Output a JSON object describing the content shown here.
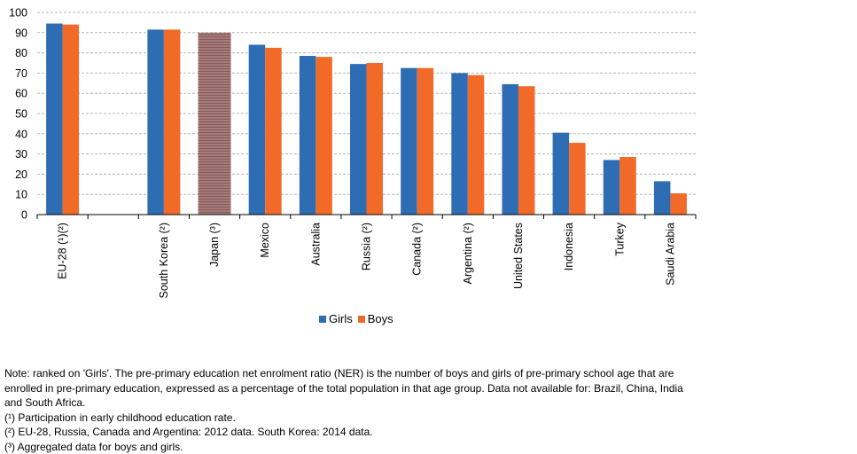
{
  "chart_data": {
    "type": "bar",
    "categories": [
      "EU-28 (¹)(²)",
      "",
      "South Korea (²)",
      "Japan (³)",
      "Mexico",
      "Australia",
      "Russia (²)",
      "Canada (²)",
      "Argentina (²)",
      "United States",
      "Indonesia",
      "Turkey",
      "Saudi Arabia"
    ],
    "series": [
      {
        "name": "Girls",
        "color": "#2e6db4",
        "values": [
          94.5,
          null,
          91.5,
          null,
          84,
          78.5,
          74.5,
          72.5,
          70,
          64.5,
          40.5,
          27,
          16.5
        ]
      },
      {
        "name": "Boys",
        "color": "#f26a27",
        "values": [
          94,
          null,
          91.5,
          null,
          82.5,
          78,
          75,
          72.5,
          69,
          63.5,
          35.5,
          28.5,
          10.5
        ]
      }
    ],
    "aggregated": [
      {
        "category": "Japan (³)",
        "value": 90,
        "pattern": "striped"
      }
    ],
    "ylim": [
      0,
      100
    ],
    "yticks": [
      0,
      10,
      20,
      30,
      40,
      50,
      60,
      70,
      80,
      90,
      100
    ],
    "grid": true,
    "legend_position": "bottom"
  },
  "notes": [
    "Note: ranked on 'Girls'. The pre-primary education net enrolment ratio (NER) is the number of boys and girls of pre-primary school age that are enrolled in pre-primary education, expressed as a percentage of the total population in that age group. Data not available for: Brazil, China, India and South Africa.",
    "(¹) Participation in early childhood education rate.",
    "(²) EU-28, Russia, Canada and Argentina: 2012 data. South Korea: 2014 data.",
    "(³) Aggregated data for boys and girls."
  ]
}
